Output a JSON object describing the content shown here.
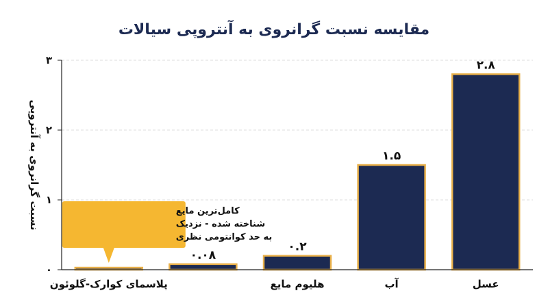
{
  "colors": {
    "bar_fill": "#1c2a52",
    "bar_border": "#e8b04a",
    "annotation_fill": "#f5b731",
    "title": "#1c2a52",
    "axis": "#222222",
    "grid": "#dcdcdc"
  },
  "chart_data": {
    "type": "bar",
    "title": "مقایسه نسبت گرانروی به آنتروپی سیالات",
    "xlabel": "",
    "ylabel": "نسبت گرانروی به آنتروپی",
    "ylim": [
      0,
      3
    ],
    "yticks": [
      {
        "value": 0,
        "label": "۰"
      },
      {
        "value": 1,
        "label": "۱"
      },
      {
        "value": 2,
        "label": "۲"
      },
      {
        "value": 3,
        "label": "۳"
      }
    ],
    "grid": "horizontal-dashed",
    "categories": [
      "پلاسمای کوارک-گلوئون",
      "",
      "هلیوم مایع",
      "آب",
      "عسل"
    ],
    "values": [
      0.0,
      0.08,
      0.2,
      1.5,
      2.8
    ],
    "data_labels": [
      "",
      "۰.۰۸",
      "۰.۲",
      "۱.۵",
      "۲.۸"
    ],
    "annotation": {
      "category_index": 0,
      "lines": [
        "کامل‌ترین مایع",
        "شناخته شده - نزدیک",
        "به حد کوانتومی نظری"
      ]
    }
  }
}
